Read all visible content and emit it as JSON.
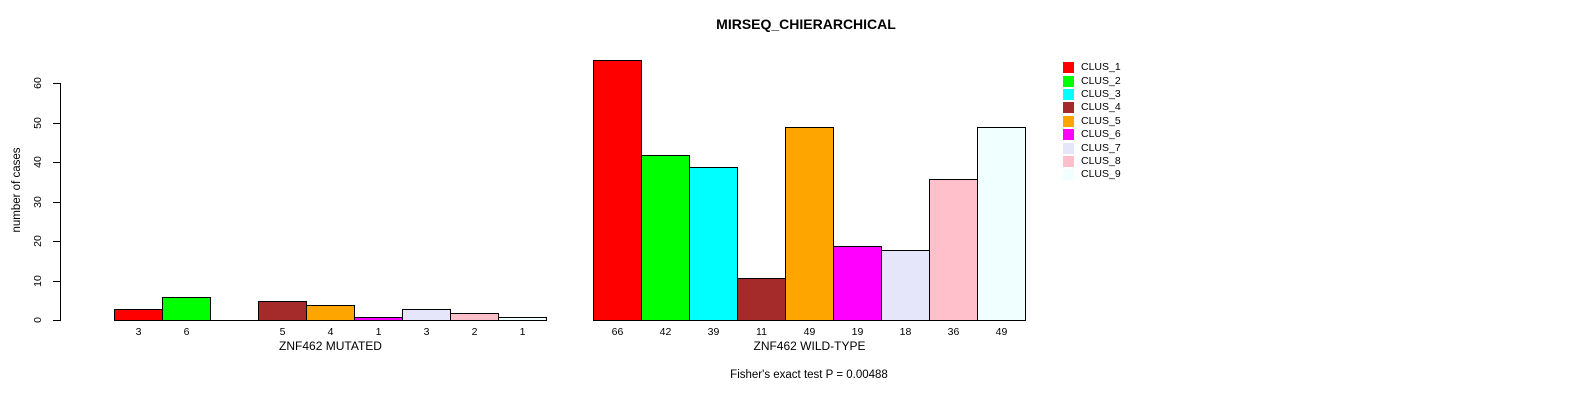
{
  "figure": {
    "title": "MIRSEQ_CHIERARCHICAL",
    "footnote": "Fisher's exact test P = 0.00488"
  },
  "chart_data": {
    "type": "bar",
    "title": "MIRSEQ_CHIERARCHICAL",
    "ylabel": "number of cases",
    "xlabel": "",
    "yticks": [
      0,
      10,
      20,
      30,
      40,
      50,
      60
    ],
    "ylim": [
      0,
      66
    ],
    "grid": false,
    "legend_position": "right-outside",
    "bar_border_color": "#000000",
    "series": [
      {
        "name": "CLUS_1",
        "color": "#FF0000"
      },
      {
        "name": "CLUS_2",
        "color": "#00FF00"
      },
      {
        "name": "CLUS_3",
        "color": "#00FFFF"
      },
      {
        "name": "CLUS_4",
        "color": "#A52A2A"
      },
      {
        "name": "CLUS_5",
        "color": "#FFA500"
      },
      {
        "name": "CLUS_6",
        "color": "#FF00FF"
      },
      {
        "name": "CLUS_7",
        "color": "#E6E6FA"
      },
      {
        "name": "CLUS_8",
        "color": "#FFC0CB"
      },
      {
        "name": "CLUS_9",
        "color": "#F0FFFF"
      }
    ],
    "groups": [
      {
        "label": "ZNF462 MUTATED",
        "values": [
          3,
          6,
          0,
          5,
          4,
          1,
          3,
          2,
          1
        ]
      },
      {
        "label": "ZNF462 WILD-TYPE",
        "values": [
          66,
          42,
          39,
          11,
          49,
          19,
          18,
          36,
          49
        ]
      }
    ],
    "annotation": "Fisher's exact test P = 0.00488"
  }
}
